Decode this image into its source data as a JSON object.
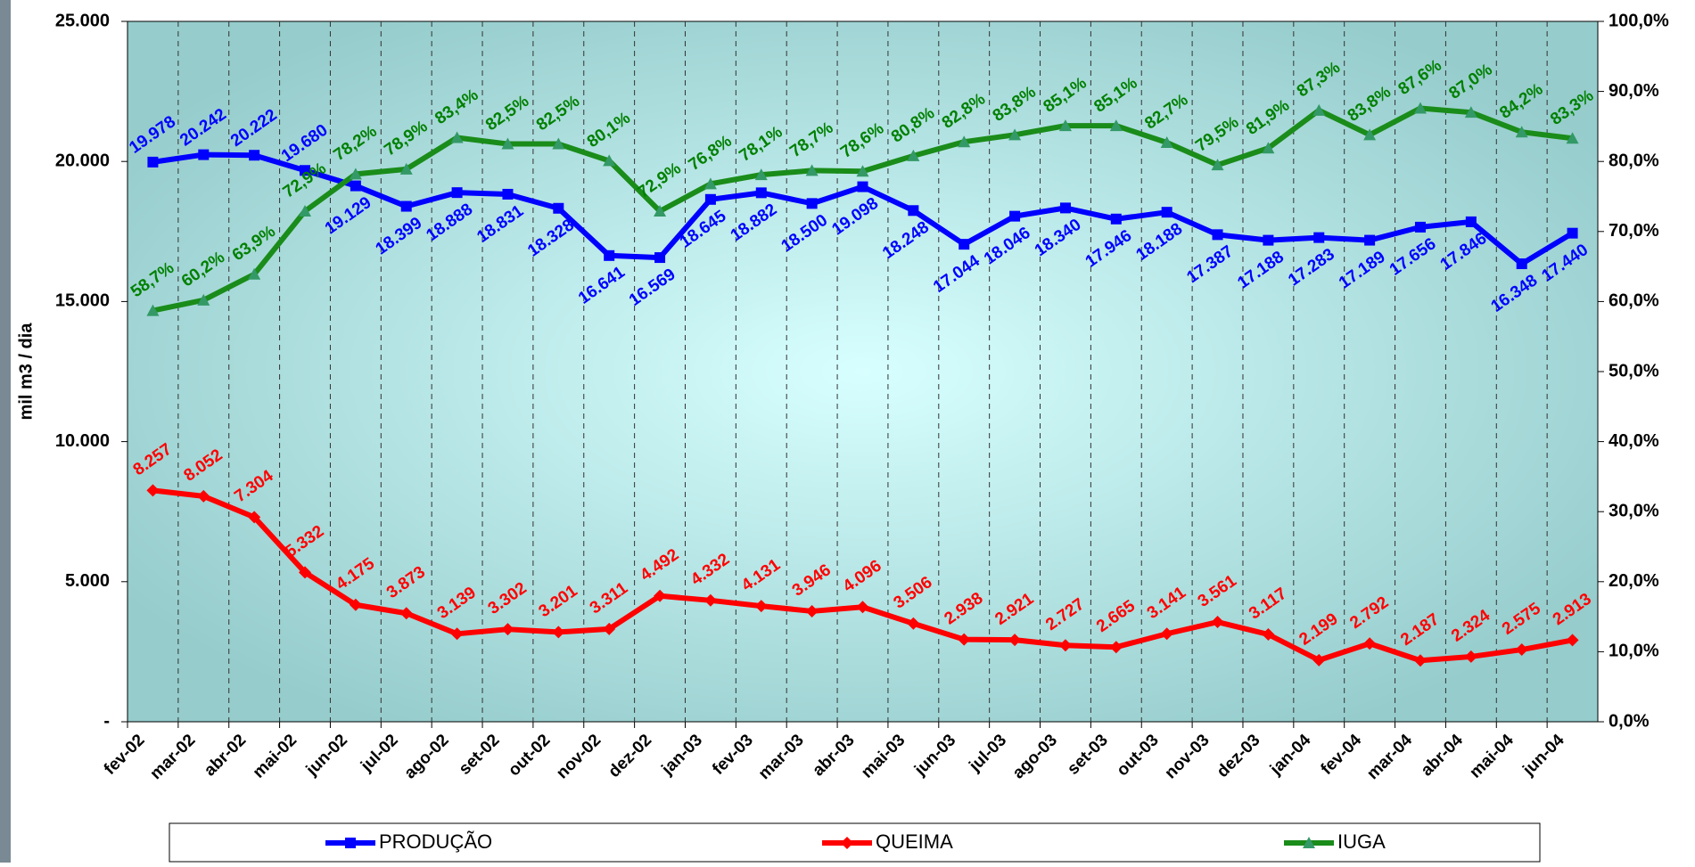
{
  "chart_data": {
    "type": "line",
    "y_label": "mil m3 / dia",
    "categories": [
      "fev-02",
      "mar-02",
      "abr-02",
      "mai-02",
      "jun-02",
      "jul-02",
      "ago-02",
      "set-02",
      "out-02",
      "nov-02",
      "dez-02",
      "jan-03",
      "fev-03",
      "mar-03",
      "abr-03",
      "mai-03",
      "jun-03",
      "jul-03",
      "ago-03",
      "set-03",
      "out-03",
      "nov-03",
      "dez-03",
      "jan-04",
      "fev-04",
      "mar-04",
      "abr-04",
      "mai-04",
      "jun-04"
    ],
    "ylim": [
      0,
      25000
    ],
    "yticks": [
      {
        "value": 0,
        "label": "-"
      },
      {
        "value": 5000,
        "label": "5.000"
      },
      {
        "value": 10000,
        "label": "10.000"
      },
      {
        "value": 15000,
        "label": "15.000"
      },
      {
        "value": 20000,
        "label": "20.000"
      },
      {
        "value": 25000,
        "label": "25.000"
      }
    ],
    "y2lim": [
      0,
      100
    ],
    "y2ticks": [
      {
        "value": 0,
        "label": "0,0%"
      },
      {
        "value": 10,
        "label": "10,0%"
      },
      {
        "value": 20,
        "label": "20,0%"
      },
      {
        "value": 30,
        "label": "30,0%"
      },
      {
        "value": 40,
        "label": "40,0%"
      },
      {
        "value": 50,
        "label": "50,0%"
      },
      {
        "value": 60,
        "label": "60,0%"
      },
      {
        "value": 70,
        "label": "70,0%"
      },
      {
        "value": 80,
        "label": "80,0%"
      },
      {
        "value": 90,
        "label": "90,0%"
      },
      {
        "value": 100,
        "label": "100,0%"
      }
    ],
    "legend": "bottom",
    "series": [
      {
        "name": "PRODUÇÃO",
        "color": "#0000ff",
        "marker": "square",
        "values": [
          19978,
          20242,
          20222,
          19680,
          19129,
          18399,
          18888,
          18831,
          18328,
          16641,
          16569,
          18645,
          18882,
          18500,
          19098,
          18248,
          17044,
          18046,
          18340,
          17946,
          18188,
          17387,
          17188,
          17283,
          17189,
          17656,
          17846,
          16348,
          17440
        ],
        "value_labels": [
          "19.978",
          "20.242",
          "20.222",
          "19.680",
          "19.129",
          "18.399",
          "18.888",
          "18.831",
          "18.328",
          "16.641",
          "16.569",
          "18.645",
          "18.882",
          "18.500",
          "19.098",
          "18.248",
          "17.044",
          "18.046",
          "18.340",
          "17.946",
          "18.188",
          "17.387",
          "17.188",
          "17.283",
          "17.189",
          "17.656",
          "17.846",
          "16.348",
          "17.440"
        ]
      },
      {
        "name": "QUEIMA",
        "color": "#ff0000",
        "marker": "diamond",
        "values": [
          8257,
          8052,
          7304,
          5332,
          4175,
          3873,
          3139,
          3302,
          3201,
          3311,
          4492,
          4332,
          4131,
          3946,
          4096,
          3506,
          2938,
          2921,
          2727,
          2665,
          3141,
          3561,
          3117,
          2199,
          2792,
          2187,
          2324,
          2575,
          2913
        ],
        "value_labels": [
          "8.257",
          "8.052",
          "7.304",
          "5.332",
          "4.175",
          "3.873",
          "3.139",
          "3.302",
          "3.201",
          "3.311",
          "4.492",
          "4.332",
          "4.131",
          "3.946",
          "4.096",
          "3.506",
          "2.938",
          "2.921",
          "2.727",
          "2.665",
          "3.141",
          "3.561",
          "3.117",
          "2.199",
          "2.792",
          "2.187",
          "2.324",
          "2.575",
          "2.913"
        ]
      },
      {
        "name": "IUGA",
        "color": "#1a8c1a",
        "marker": "triangle",
        "axis": "y2",
        "values": [
          58.7,
          60.2,
          63.9,
          72.9,
          78.2,
          78.9,
          83.4,
          82.5,
          82.5,
          80.1,
          72.9,
          76.8,
          78.1,
          78.7,
          78.6,
          80.8,
          82.8,
          83.8,
          85.1,
          85.1,
          82.7,
          79.5,
          81.9,
          87.3,
          83.8,
          87.6,
          87.0,
          84.2,
          83.3
        ],
        "value_labels": [
          "58,7%",
          "60,2%",
          "63,9%",
          "72,9%",
          "78,2%",
          "78,9%",
          "83,4%",
          "82,5%",
          "82,5%",
          "80,1%",
          "72,9%",
          "76,8%",
          "78,1%",
          "78,7%",
          "78,6%",
          "80,8%",
          "82,8%",
          "83,8%",
          "85,1%",
          "85,1%",
          "82,7%",
          "79,5%",
          "81,9%",
          "87,3%",
          "83,8%",
          "87,6%",
          "87,0%",
          "84,2%",
          "83,3%"
        ]
      }
    ]
  }
}
